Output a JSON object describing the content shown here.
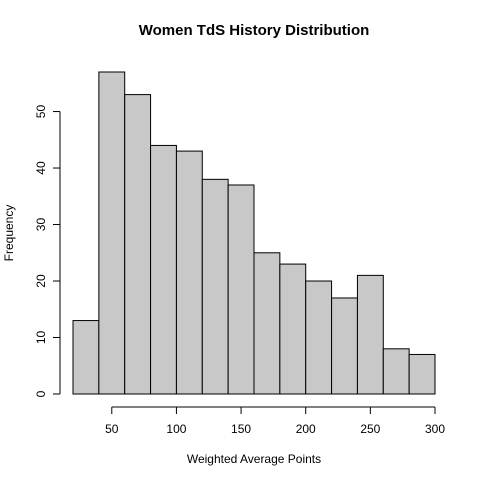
{
  "chart_data": {
    "type": "bar",
    "subtype": "histogram",
    "title": "Women TdS History Distribution",
    "xlabel": "Weighted Average Points",
    "ylabel": "Frequency",
    "bins": [
      {
        "start": 20,
        "end": 40,
        "count": 13
      },
      {
        "start": 40,
        "end": 60,
        "count": 57
      },
      {
        "start": 60,
        "end": 80,
        "count": 53
      },
      {
        "start": 80,
        "end": 100,
        "count": 44
      },
      {
        "start": 100,
        "end": 120,
        "count": 43
      },
      {
        "start": 120,
        "end": 140,
        "count": 38
      },
      {
        "start": 140,
        "end": 160,
        "count": 37
      },
      {
        "start": 160,
        "end": 180,
        "count": 25
      },
      {
        "start": 180,
        "end": 200,
        "count": 23
      },
      {
        "start": 200,
        "end": 220,
        "count": 20
      },
      {
        "start": 220,
        "end": 240,
        "count": 17
      },
      {
        "start": 240,
        "end": 260,
        "count": 21
      },
      {
        "start": 260,
        "end": 280,
        "count": 8
      },
      {
        "start": 280,
        "end": 300,
        "count": 7
      }
    ],
    "xlim": [
      20,
      300
    ],
    "ylim": [
      0,
      57
    ],
    "x_ticks": [
      50,
      100,
      150,
      200,
      250,
      300
    ],
    "y_ticks": [
      0,
      10,
      20,
      30,
      40,
      50
    ],
    "grid": false,
    "legend": "none",
    "bar_fill": "#c8c8c8",
    "bar_stroke": "#000000"
  }
}
